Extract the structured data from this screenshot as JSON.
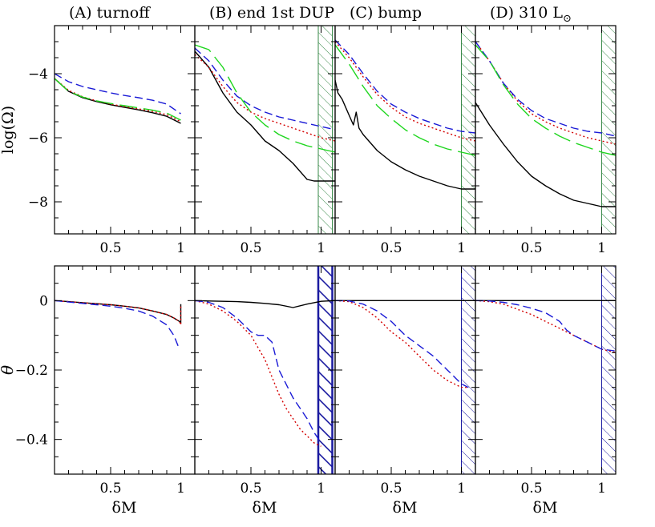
{
  "figure": {
    "ylabel_top": "log(Ω)",
    "ylabel_bottom": "θ",
    "xlabel": "δM",
    "sun_symbol": "⊙"
  },
  "chart_data": {
    "type": "line",
    "panel_titles": [
      {
        "text": "(A) turnoff"
      },
      {
        "text": "(B) end 1st DUP"
      },
      {
        "text": "(C) bump"
      },
      {
        "text": "(D) 310 L",
        "subscript": "⊙"
      }
    ],
    "x_range": [
      0.1,
      1.1
    ],
    "x_ticks": [
      "0.5",
      "1"
    ],
    "top_row": {
      "ylabel": "log(Ω)",
      "ylim": [
        -9,
        -2.5
      ],
      "y_ticks": [
        "-4",
        "-6",
        "-8"
      ]
    },
    "bottom_row": {
      "ylabel": "θ",
      "ylim": [
        -0.5,
        0.1
      ],
      "y_ticks": [
        "0",
        "-0.2",
        "-0.4"
      ]
    },
    "series_styles": [
      {
        "id": "black",
        "color": "#000000",
        "dash": "none"
      },
      {
        "id": "red",
        "color": "#d40000",
        "dash": "2 3"
      },
      {
        "id": "blue",
        "color": "#1a1ad6",
        "dash": "10 5"
      },
      {
        "id": "green",
        "color": "#1ed61e",
        "dash": "22 8"
      }
    ],
    "panels": [
      {
        "row": "top",
        "col": 0,
        "hatch": null,
        "series": [
          {
            "style": "black",
            "x": [
              0.1,
              0.2,
              0.3,
              0.4,
              0.5,
              0.6,
              0.7,
              0.8,
              0.9,
              1.0
            ],
            "y": [
              -4.15,
              -4.55,
              -4.75,
              -4.87,
              -4.97,
              -5.05,
              -5.13,
              -5.22,
              -5.33,
              -5.55
            ]
          },
          {
            "style": "red",
            "x": [
              0.1,
              0.2,
              0.3,
              0.4,
              0.5,
              0.6,
              0.7,
              0.8,
              0.9,
              1.0
            ],
            "y": [
              -4.15,
              -4.52,
              -4.72,
              -4.85,
              -4.95,
              -5.03,
              -5.1,
              -5.18,
              -5.28,
              -5.5
            ]
          },
          {
            "style": "blue",
            "x": [
              0.1,
              0.2,
              0.3,
              0.4,
              0.5,
              0.6,
              0.7,
              0.8,
              0.9,
              1.0
            ],
            "y": [
              -4.0,
              -4.25,
              -4.4,
              -4.5,
              -4.6,
              -4.68,
              -4.75,
              -4.83,
              -4.95,
              -5.25
            ]
          },
          {
            "style": "green",
            "x": [
              0.1,
              0.2,
              0.3,
              0.4,
              0.5,
              0.6,
              0.7,
              0.8,
              0.9,
              1.0
            ],
            "y": [
              -4.15,
              -4.55,
              -4.73,
              -4.85,
              -4.93,
              -5.0,
              -5.07,
              -5.14,
              -5.23,
              -5.45
            ]
          }
        ]
      },
      {
        "row": "top",
        "col": 1,
        "hatch": {
          "x0": 0.98,
          "x1": 1.08,
          "color": "#3a8a4a",
          "thick": false
        },
        "series": [
          {
            "style": "black",
            "x": [
              0.1,
              0.2,
              0.3,
              0.4,
              0.5,
              0.6,
              0.7,
              0.8,
              0.9,
              0.95,
              1.0,
              1.1
            ],
            "y": [
              -3.3,
              -3.8,
              -4.6,
              -5.2,
              -5.6,
              -6.1,
              -6.4,
              -6.8,
              -7.3,
              -7.35,
              -7.35,
              -7.35
            ]
          },
          {
            "style": "red",
            "x": [
              0.1,
              0.2,
              0.3,
              0.4,
              0.5,
              0.6,
              0.7,
              0.8,
              0.9,
              1.0,
              1.1
            ],
            "y": [
              -3.4,
              -3.8,
              -4.4,
              -4.9,
              -5.2,
              -5.4,
              -5.55,
              -5.7,
              -5.85,
              -6.0,
              -6.1
            ]
          },
          {
            "style": "blue",
            "x": [
              0.1,
              0.2,
              0.3,
              0.4,
              0.5,
              0.6,
              0.7,
              0.8,
              0.9,
              1.0,
              1.1
            ],
            "y": [
              -3.2,
              -3.6,
              -4.2,
              -4.7,
              -5.0,
              -5.2,
              -5.35,
              -5.45,
              -5.55,
              -5.65,
              -5.75
            ]
          },
          {
            "style": "green",
            "x": [
              0.1,
              0.2,
              0.3,
              0.4,
              0.5,
              0.6,
              0.7,
              0.8,
              0.9,
              1.0,
              1.1
            ],
            "y": [
              -3.1,
              -3.25,
              -3.8,
              -4.6,
              -5.2,
              -5.6,
              -5.9,
              -6.1,
              -6.25,
              -6.35,
              -6.45
            ]
          }
        ]
      },
      {
        "row": "top",
        "col": 2,
        "hatch": {
          "x0": 1.0,
          "x1": 1.1,
          "color": "#3a8a4a",
          "thick": false
        },
        "series": [
          {
            "style": "black",
            "x": [
              0.1,
              0.12,
              0.15,
              0.2,
              0.23,
              0.25,
              0.27,
              0.3,
              0.4,
              0.5,
              0.6,
              0.7,
              0.8,
              0.9,
              1.0,
              1.1
            ],
            "y": [
              -4.2,
              -4.6,
              -4.8,
              -5.3,
              -5.6,
              -5.2,
              -5.7,
              -5.9,
              -6.4,
              -6.75,
              -7.0,
              -7.2,
              -7.35,
              -7.5,
              -7.6,
              -7.6
            ]
          },
          {
            "style": "red",
            "x": [
              0.1,
              0.2,
              0.3,
              0.4,
              0.5,
              0.6,
              0.7,
              0.8,
              0.9,
              1.0,
              1.1
            ],
            "y": [
              -3.0,
              -3.5,
              -4.1,
              -4.65,
              -5.05,
              -5.35,
              -5.55,
              -5.7,
              -5.85,
              -6.0,
              -6.1
            ]
          },
          {
            "style": "blue",
            "x": [
              0.1,
              0.2,
              0.3,
              0.4,
              0.5,
              0.6,
              0.7,
              0.8,
              0.9,
              1.0,
              1.1
            ],
            "y": [
              -2.95,
              -3.4,
              -4.0,
              -4.55,
              -4.95,
              -5.2,
              -5.4,
              -5.55,
              -5.7,
              -5.8,
              -5.85
            ]
          },
          {
            "style": "green",
            "x": [
              0.1,
              0.2,
              0.3,
              0.4,
              0.5,
              0.6,
              0.7,
              0.8,
              0.9,
              1.0,
              1.1
            ],
            "y": [
              -3.1,
              -3.7,
              -4.4,
              -5.0,
              -5.4,
              -5.75,
              -6.0,
              -6.2,
              -6.35,
              -6.45,
              -6.55
            ]
          }
        ]
      },
      {
        "row": "top",
        "col": 3,
        "hatch": {
          "x0": 1.0,
          "x1": 1.1,
          "color": "#3a8a4a",
          "thick": false
        },
        "series": [
          {
            "style": "black",
            "x": [
              0.1,
              0.2,
              0.3,
              0.4,
              0.5,
              0.6,
              0.7,
              0.8,
              0.9,
              1.0,
              1.1
            ],
            "y": [
              -4.9,
              -5.6,
              -6.2,
              -6.75,
              -7.2,
              -7.5,
              -7.75,
              -7.95,
              -8.05,
              -8.15,
              -8.15
            ]
          },
          {
            "style": "red",
            "x": [
              0.1,
              0.2,
              0.3,
              0.4,
              0.5,
              0.6,
              0.7,
              0.8,
              0.9,
              1.0,
              1.1
            ],
            "y": [
              -3.0,
              -3.6,
              -4.3,
              -4.85,
              -5.25,
              -5.5,
              -5.7,
              -5.85,
              -6.0,
              -6.1,
              -6.2
            ]
          },
          {
            "style": "blue",
            "x": [
              0.1,
              0.2,
              0.3,
              0.4,
              0.5,
              0.6,
              0.7,
              0.8,
              0.9,
              1.0,
              1.1
            ],
            "y": [
              -3.0,
              -3.6,
              -4.3,
              -4.8,
              -5.15,
              -5.4,
              -5.55,
              -5.7,
              -5.8,
              -5.85,
              -5.95
            ]
          },
          {
            "style": "green",
            "x": [
              0.1,
              0.2,
              0.3,
              0.4,
              0.5,
              0.6,
              0.7,
              0.8,
              0.9,
              1.0,
              1.1
            ],
            "y": [
              -3.1,
              -3.6,
              -4.35,
              -4.95,
              -5.4,
              -5.7,
              -5.95,
              -6.15,
              -6.3,
              -6.45,
              -6.55
            ]
          }
        ]
      },
      {
        "row": "bottom",
        "col": 0,
        "hatch": null,
        "series": [
          {
            "style": "black",
            "x": [
              0.1,
              0.2,
              0.3,
              0.4,
              0.5,
              0.6,
              0.7,
              0.8,
              0.9,
              0.95,
              0.99,
              1.0,
              1.0
            ],
            "y": [
              0.0,
              -0.003,
              -0.006,
              -0.009,
              -0.012,
              -0.016,
              -0.021,
              -0.03,
              -0.04,
              -0.05,
              -0.06,
              -0.065,
              -0.01
            ]
          },
          {
            "style": "red",
            "x": [
              0.1,
              0.2,
              0.3,
              0.4,
              0.5,
              0.6,
              0.7,
              0.8,
              0.9,
              0.95,
              0.99,
              1.0,
              1.0
            ],
            "y": [
              0.0,
              -0.003,
              -0.006,
              -0.009,
              -0.012,
              -0.016,
              -0.021,
              -0.03,
              -0.04,
              -0.05,
              -0.06,
              -0.07,
              -0.01
            ]
          },
          {
            "style": "blue",
            "x": [
              0.1,
              0.2,
              0.3,
              0.4,
              0.5,
              0.6,
              0.7,
              0.8,
              0.9,
              0.95,
              0.99
            ],
            "y": [
              0.0,
              -0.004,
              -0.008,
              -0.012,
              -0.016,
              -0.022,
              -0.03,
              -0.045,
              -0.07,
              -0.1,
              -0.14
            ]
          }
        ]
      },
      {
        "row": "bottom",
        "col": 1,
        "hatch": {
          "x0": 0.98,
          "x1": 1.08,
          "color": "#1a1aa0",
          "thick": true
        },
        "series": [
          {
            "style": "black",
            "x": [
              0.1,
              0.2,
              0.3,
              0.4,
              0.5,
              0.6,
              0.7,
              0.8,
              0.9,
              1.0,
              1.1
            ],
            "y": [
              0.0,
              -0.001,
              -0.002,
              -0.003,
              -0.005,
              -0.008,
              -0.012,
              -0.02,
              -0.01,
              -0.002,
              0.0
            ]
          },
          {
            "style": "red",
            "x": [
              0.1,
              0.2,
              0.3,
              0.4,
              0.5,
              0.6,
              0.7,
              0.75,
              0.8,
              0.85,
              0.9,
              0.95,
              1.0
            ],
            "y": [
              0.0,
              -0.01,
              -0.03,
              -0.06,
              -0.1,
              -0.17,
              -0.27,
              -0.31,
              -0.34,
              -0.37,
              -0.39,
              -0.41,
              -0.42
            ]
          },
          {
            "style": "blue",
            "x": [
              0.1,
              0.2,
              0.3,
              0.4,
              0.5,
              0.55,
              0.6,
              0.65,
              0.7,
              0.8,
              0.9,
              0.95,
              1.0
            ],
            "y": [
              0.0,
              -0.005,
              -0.02,
              -0.05,
              -0.09,
              -0.1,
              -0.1,
              -0.12,
              -0.2,
              -0.28,
              -0.34,
              -0.38,
              -0.41
            ]
          }
        ]
      },
      {
        "row": "bottom",
        "col": 2,
        "hatch": {
          "x0": 1.0,
          "x1": 1.1,
          "color": "#1a1aa0",
          "thick": false
        },
        "series": [
          {
            "style": "black",
            "x": [
              0.1,
              0.3,
              0.5,
              0.7,
              0.9,
              1.1
            ],
            "y": [
              0.0,
              0.0,
              0.0,
              0.0,
              0.0,
              0.0
            ]
          },
          {
            "style": "red",
            "x": [
              0.1,
              0.2,
              0.3,
              0.4,
              0.5,
              0.6,
              0.7,
              0.8,
              0.9,
              1.0,
              1.05
            ],
            "y": [
              0.0,
              -0.003,
              -0.02,
              -0.05,
              -0.09,
              -0.12,
              -0.16,
              -0.2,
              -0.23,
              -0.25,
              -0.25
            ]
          },
          {
            "style": "blue",
            "x": [
              0.1,
              0.2,
              0.3,
              0.4,
              0.5,
              0.6,
              0.7,
              0.8,
              0.9,
              1.0,
              1.05
            ],
            "y": [
              0.0,
              -0.001,
              -0.01,
              -0.03,
              -0.06,
              -0.1,
              -0.13,
              -0.16,
              -0.2,
              -0.24,
              -0.25
            ]
          }
        ]
      },
      {
        "row": "bottom",
        "col": 3,
        "hatch": {
          "x0": 1.0,
          "x1": 1.1,
          "color": "#1a1aa0",
          "thick": false
        },
        "series": [
          {
            "style": "black",
            "x": [
              0.1,
              0.3,
              0.5,
              0.7,
              0.9,
              1.1
            ],
            "y": [
              0.0,
              0.0,
              0.0,
              0.0,
              0.0,
              0.0
            ]
          },
          {
            "style": "red",
            "x": [
              0.1,
              0.2,
              0.3,
              0.4,
              0.5,
              0.6,
              0.7,
              0.8,
              0.9,
              1.0,
              1.1
            ],
            "y": [
              0.0,
              -0.003,
              -0.01,
              -0.025,
              -0.04,
              -0.06,
              -0.08,
              -0.1,
              -0.12,
              -0.14,
              -0.15
            ]
          },
          {
            "style": "blue",
            "x": [
              0.1,
              0.2,
              0.3,
              0.4,
              0.5,
              0.6,
              0.7,
              0.75,
              0.8,
              0.9,
              1.0,
              1.1
            ],
            "y": [
              0.0,
              -0.001,
              -0.005,
              -0.012,
              -0.022,
              -0.035,
              -0.06,
              -0.085,
              -0.1,
              -0.12,
              -0.14,
              -0.145
            ]
          }
        ]
      }
    ]
  }
}
